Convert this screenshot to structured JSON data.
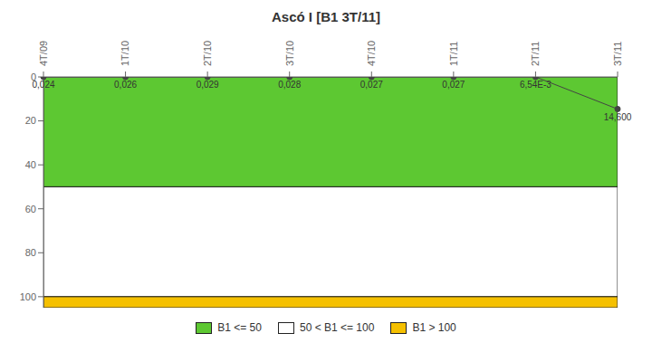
{
  "chart_data": {
    "type": "line",
    "title": "Ascó I [B1 3T/11]",
    "categories": [
      "4T/09",
      "1T/10",
      "2T/10",
      "3T/10",
      "4T/10",
      "1T/11",
      "2T/11",
      "3T/11"
    ],
    "values": [
      0.024,
      0.026,
      0.029,
      0.028,
      0.027,
      0.027,
      0.00654,
      14.6
    ],
    "value_labels": [
      "0,024",
      "0,026",
      "0,029",
      "0,028",
      "0,027",
      "0,027",
      "6,54E-3",
      "14,600"
    ],
    "data_labels": true,
    "color": "#444444",
    "ylim": [
      105,
      0
    ],
    "yticks": [
      0,
      20,
      40,
      60,
      80,
      100
    ],
    "bands": [
      {
        "name": "B1 <= 50",
        "from": 0,
        "to": 50,
        "color": "#5DC832"
      },
      {
        "name": "50 < B1 <= 100",
        "from": 50,
        "to": 100,
        "color": "#FFFFFF"
      },
      {
        "name": "B1 > 100",
        "from": 100,
        "to": 105,
        "color": "#F5C000"
      }
    ],
    "legend": "bottom",
    "grid": false
  }
}
